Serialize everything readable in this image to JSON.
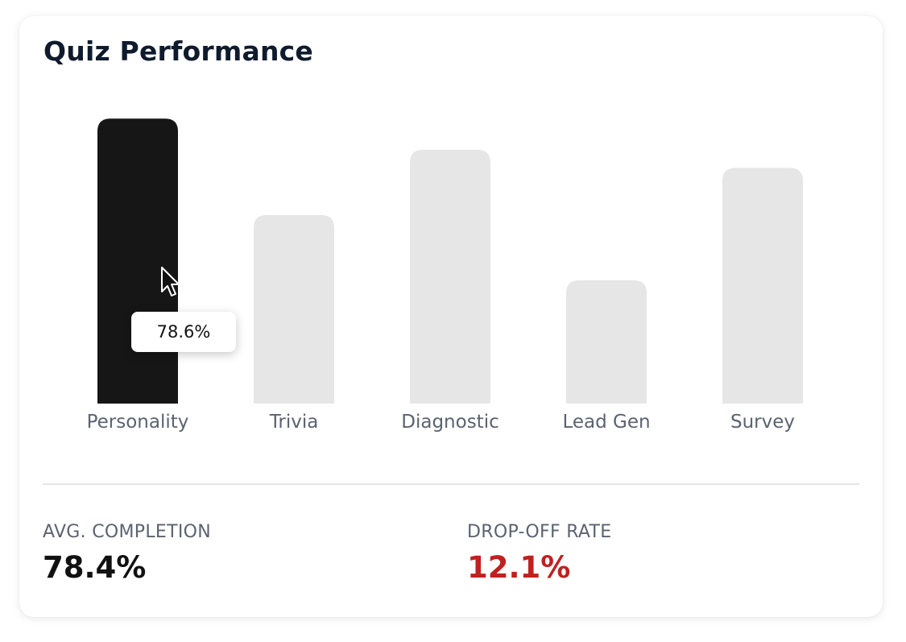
{
  "title": "Quiz Performance",
  "chart_data": {
    "type": "bar",
    "categories": [
      "Personality",
      "Trivia",
      "Diagnostic",
      "Lead Gen",
      "Survey"
    ],
    "values": [
      78.6,
      52,
      70,
      34,
      65
    ],
    "highlighted_index": 0,
    "ylim": [
      0,
      80
    ],
    "grid": false,
    "colors": {
      "highlighted": "#161616",
      "default": "#e6e6e6"
    }
  },
  "tooltip": {
    "text": "78.6%"
  },
  "stats": {
    "avg_completion": {
      "label": "AVG. COMPLETION",
      "value": "78.4%"
    },
    "drop_off": {
      "label": "DROP-OFF RATE",
      "value": "12.1%",
      "color": "#c0201f"
    }
  }
}
